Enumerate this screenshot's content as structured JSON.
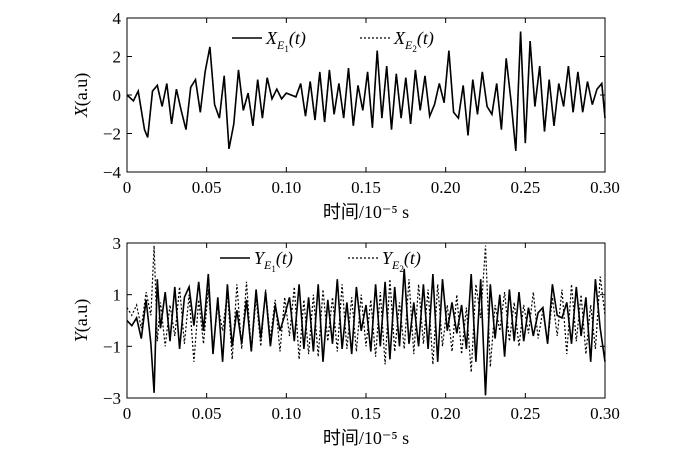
{
  "chart_data": [
    {
      "type": "line",
      "xlabel": "时间/10⁻⁵ s",
      "ylabel": "X(a.u)",
      "ylabel_italic": "X",
      "ylabel_rest": "(a.u)",
      "xlim": [
        0,
        0.3
      ],
      "ylim": [
        -4,
        4
      ],
      "xticks": [
        0,
        0.05,
        0.1,
        0.15,
        0.2,
        0.25,
        0.3
      ],
      "xtick_labels": [
        "0",
        "0.05",
        "0.10",
        "0.15",
        "0.20",
        "0.25",
        "0.30"
      ],
      "yticks": [
        -4,
        -2,
        0,
        2,
        4
      ],
      "ytick_labels": [
        "−4",
        "−2",
        "0",
        "2",
        "4"
      ],
      "grid": false,
      "legend_position": "top-center",
      "series": [
        {
          "name": "X_E1(t)",
          "legend_main": "X",
          "legend_sub": "E",
          "legend_subsub": "1",
          "legend_tail": "(t)",
          "style": "solid",
          "x": [
            0,
            0.004,
            0.007,
            0.011,
            0.013,
            0.016,
            0.019,
            0.022,
            0.025,
            0.028,
            0.031,
            0.034,
            0.037,
            0.04,
            0.043,
            0.046,
            0.049,
            0.052,
            0.055,
            0.058,
            0.061,
            0.064,
            0.067,
            0.07,
            0.073,
            0.076,
            0.079,
            0.082,
            0.085,
            0.088,
            0.091,
            0.094,
            0.097,
            0.1,
            0.103,
            0.106,
            0.109,
            0.112,
            0.115,
            0.118,
            0.121,
            0.124,
            0.127,
            0.13,
            0.133,
            0.136,
            0.139,
            0.142,
            0.145,
            0.148,
            0.151,
            0.154,
            0.157,
            0.16,
            0.163,
            0.166,
            0.169,
            0.172,
            0.175,
            0.178,
            0.181,
            0.184,
            0.187,
            0.19,
            0.193,
            0.196,
            0.199,
            0.202,
            0.205,
            0.208,
            0.211,
            0.214,
            0.217,
            0.22,
            0.223,
            0.226,
            0.229,
            0.232,
            0.235,
            0.238,
            0.241,
            0.244,
            0.247,
            0.25,
            0.253,
            0.256,
            0.259,
            0.262,
            0.265,
            0.268,
            0.271,
            0.274,
            0.277,
            0.28,
            0.283,
            0.286,
            0.289,
            0.292,
            0.295,
            0.298,
            0.3
          ],
          "values": [
            0,
            -0.3,
            0.2,
            -1.8,
            -2.2,
            0.2,
            0.5,
            -0.6,
            0.6,
            -1.5,
            0.3,
            -0.8,
            -1.8,
            0.4,
            0.8,
            -0.9,
            1.2,
            2.5,
            -0.5,
            -1.2,
            1.0,
            -2.8,
            -1.5,
            1.3,
            -0.8,
            0.1,
            -1.6,
            0.8,
            -1.2,
            0.9,
            -0.2,
            0.3,
            -0.2,
            0.1,
            0,
            -0.1,
            0.6,
            -1.1,
            0.7,
            -1.3,
            1.2,
            -1.4,
            1.3,
            -1.0,
            0.6,
            -1.2,
            1.4,
            -1.6,
            0.5,
            -0.8,
            1.2,
            -1.7,
            2.3,
            -1.2,
            1.5,
            -1.8,
            1.1,
            -1.2,
            0.9,
            -1.5,
            1.3,
            -0.8,
            1.0,
            -1.1,
            -0.5,
            0.6,
            -0.4,
            2.3,
            -0.9,
            -1.2,
            0.5,
            -2.1,
            0.8,
            -1.0,
            1.2,
            -0.6,
            -1.0,
            0.6,
            -1.8,
            1.9,
            -0.3,
            -2.9,
            3.3,
            -2.5,
            2.8,
            -0.6,
            1.5,
            -1.9,
            0.8,
            -1.6,
            0.6,
            -0.6,
            1.5,
            -0.9,
            1.2,
            -0.9,
            0.7,
            -0.5,
            0.3,
            0.6,
            -1.2
          ]
        },
        {
          "name": "X_E2(t)",
          "legend_main": "X",
          "legend_sub": "E",
          "legend_subsub": "2",
          "legend_tail": "(t)",
          "style": "dotted",
          "x": [
            0,
            0.004,
            0.007,
            0.011,
            0.013,
            0.016,
            0.019,
            0.022,
            0.025,
            0.028,
            0.031,
            0.034,
            0.037,
            0.04,
            0.043,
            0.046,
            0.049,
            0.052,
            0.055,
            0.058,
            0.061,
            0.064,
            0.067,
            0.07,
            0.073,
            0.076,
            0.079,
            0.082,
            0.085,
            0.088,
            0.091,
            0.094,
            0.097,
            0.1,
            0.103,
            0.106,
            0.109,
            0.112,
            0.115,
            0.118,
            0.121,
            0.124,
            0.127,
            0.13,
            0.133,
            0.136,
            0.139,
            0.142,
            0.145,
            0.148,
            0.151,
            0.154,
            0.157,
            0.16,
            0.163,
            0.166,
            0.169,
            0.172,
            0.175,
            0.178,
            0.181,
            0.184,
            0.187,
            0.19,
            0.193,
            0.196,
            0.199,
            0.202,
            0.205,
            0.208,
            0.211,
            0.214,
            0.217,
            0.22,
            0.223,
            0.226,
            0.229,
            0.232,
            0.235,
            0.238,
            0.241,
            0.244,
            0.247,
            0.25,
            0.253,
            0.256,
            0.259,
            0.262,
            0.265,
            0.268,
            0.271,
            0.274,
            0.277,
            0.28,
            0.283,
            0.286,
            0.289,
            0.292,
            0.295,
            0.298,
            0.3
          ],
          "values": [
            0,
            -0.3,
            0.2,
            -1.8,
            -2.2,
            0.2,
            0.5,
            -0.6,
            0.6,
            -1.5,
            0.3,
            -0.8,
            -1.8,
            0.4,
            0.8,
            -0.9,
            1.2,
            2.5,
            -0.5,
            -1.2,
            1.0,
            -2.8,
            -1.5,
            1.3,
            -0.8,
            0.1,
            -1.6,
            0.8,
            -1.2,
            0.9,
            -0.2,
            0.3,
            -0.2,
            0.1,
            0,
            -0.1,
            0.6,
            -1.1,
            0.7,
            -1.3,
            1.2,
            -1.4,
            1.3,
            -1.0,
            0.6,
            -1.2,
            1.4,
            -1.6,
            0.5,
            -0.8,
            1.2,
            -1.7,
            2.3,
            -1.2,
            1.5,
            -1.8,
            1.1,
            -1.2,
            0.9,
            -1.5,
            1.3,
            -0.8,
            1.0,
            -1.1,
            -0.5,
            0.6,
            -0.4,
            2.3,
            -0.9,
            -1.2,
            0.5,
            -2.1,
            0.8,
            -1.0,
            1.2,
            -0.6,
            -1.0,
            0.6,
            -1.8,
            1.9,
            -0.3,
            -2.9,
            3.3,
            -2.5,
            2.8,
            -0.6,
            1.5,
            -1.9,
            0.8,
            -1.6,
            0.6,
            -0.6,
            1.5,
            -0.9,
            1.2,
            -0.9,
            0.7,
            -0.5,
            0.3,
            0.6,
            -1.2
          ]
        }
      ]
    },
    {
      "type": "line",
      "xlabel": "时间/10⁻⁵ s",
      "ylabel": "Y(a.u)",
      "ylabel_italic": "Y",
      "ylabel_rest": "(a.u)",
      "xlim": [
        0,
        0.3
      ],
      "ylim": [
        -3,
        3
      ],
      "xticks": [
        0,
        0.05,
        0.1,
        0.15,
        0.2,
        0.25,
        0.3
      ],
      "xtick_labels": [
        "0",
        "0.05",
        "0.10",
        "0.15",
        "0.20",
        "0.25",
        "0.30"
      ],
      "yticks": [
        -3,
        -1,
        1,
        3
      ],
      "ytick_labels": [
        "−3",
        "−1",
        "1",
        "3"
      ],
      "grid": false,
      "legend_position": "top-center",
      "series": [
        {
          "name": "Y_E1(t)",
          "legend_main": "Y",
          "legend_sub": "E",
          "legend_subsub": "1",
          "legend_tail": "(t)",
          "style": "solid",
          "x": [
            0,
            0.003,
            0.006,
            0.009,
            0.012,
            0.015,
            0.017,
            0.019,
            0.021,
            0.024,
            0.027,
            0.03,
            0.033,
            0.036,
            0.039,
            0.042,
            0.045,
            0.048,
            0.051,
            0.054,
            0.057,
            0.06,
            0.063,
            0.066,
            0.069,
            0.072,
            0.075,
            0.078,
            0.081,
            0.084,
            0.087,
            0.09,
            0.093,
            0.096,
            0.099,
            0.102,
            0.105,
            0.108,
            0.111,
            0.114,
            0.117,
            0.12,
            0.123,
            0.126,
            0.129,
            0.132,
            0.135,
            0.138,
            0.141,
            0.144,
            0.147,
            0.15,
            0.153,
            0.156,
            0.159,
            0.162,
            0.165,
            0.168,
            0.171,
            0.174,
            0.177,
            0.18,
            0.183,
            0.186,
            0.189,
            0.192,
            0.195,
            0.198,
            0.201,
            0.204,
            0.207,
            0.21,
            0.213,
            0.216,
            0.219,
            0.222,
            0.225,
            0.228,
            0.231,
            0.234,
            0.237,
            0.24,
            0.243,
            0.246,
            0.249,
            0.252,
            0.255,
            0.258,
            0.261,
            0.264,
            0.267,
            0.27,
            0.273,
            0.276,
            0.279,
            0.282,
            0.285,
            0.288,
            0.291,
            0.294,
            0.297,
            0.3
          ],
          "values": [
            0,
            -0.2,
            0.1,
            -0.7,
            0.8,
            -0.9,
            -2.8,
            1.6,
            -0.3,
            1.1,
            -0.8,
            1.3,
            -1.1,
            0.9,
            1.3,
            -0.2,
            1.5,
            -0.4,
            1.8,
            -1.3,
            0.9,
            -1.6,
            1.4,
            -1.0,
            0.4,
            -0.9,
            0.8,
            -1.2,
            1.2,
            -0.7,
            1.1,
            -1.0,
            0.6,
            -0.4,
            0.2,
            0.9,
            -0.8,
            1.4,
            -1.1,
            0.9,
            -1.2,
            1.4,
            -1.6,
            0.8,
            -0.9,
            1.6,
            -1.1,
            0.7,
            -1.3,
            1.3,
            -0.4,
            0.6,
            -1.2,
            1.4,
            -1.0,
            1.5,
            -1.5,
            1.3,
            -1.0,
            2.0,
            -0.9,
            0.7,
            -1.0,
            1.4,
            -1.1,
            1.8,
            -1.6,
            1.6,
            -0.4,
            0.7,
            -0.5,
            0.6,
            -1.1,
            1.8,
            -1.6,
            1.6,
            -2.9,
            1.4,
            -0.7,
            1.0,
            -1.4,
            1.2,
            -0.8,
            1.1,
            -0.8,
            0.5,
            -0.6,
            0.3,
            0.5,
            -0.9,
            1.4,
            0.2,
            0.1,
            0.7,
            -0.9,
            1.3,
            -0.6,
            0.9,
            -1.6,
            1.6,
            -0.3,
            -1.6
          ]
        },
        {
          "name": "Y_E2(t)",
          "legend_main": "Y",
          "legend_sub": "E",
          "legend_subsub": "2",
          "legend_tail": "(t)",
          "style": "dotted",
          "x": [
            0,
            0.003,
            0.006,
            0.009,
            0.012,
            0.015,
            0.017,
            0.019,
            0.021,
            0.024,
            0.027,
            0.03,
            0.033,
            0.036,
            0.039,
            0.042,
            0.045,
            0.048,
            0.051,
            0.054,
            0.057,
            0.06,
            0.063,
            0.066,
            0.069,
            0.072,
            0.075,
            0.078,
            0.081,
            0.084,
            0.087,
            0.09,
            0.093,
            0.096,
            0.099,
            0.102,
            0.105,
            0.108,
            0.111,
            0.114,
            0.117,
            0.12,
            0.123,
            0.126,
            0.129,
            0.132,
            0.135,
            0.138,
            0.141,
            0.144,
            0.147,
            0.15,
            0.153,
            0.156,
            0.159,
            0.162,
            0.165,
            0.168,
            0.171,
            0.174,
            0.177,
            0.18,
            0.183,
            0.186,
            0.189,
            0.192,
            0.195,
            0.198,
            0.201,
            0.204,
            0.207,
            0.21,
            0.213,
            0.216,
            0.219,
            0.222,
            0.225,
            0.228,
            0.231,
            0.234,
            0.237,
            0.24,
            0.243,
            0.246,
            0.249,
            0.252,
            0.255,
            0.258,
            0.261,
            0.264,
            0.267,
            0.27,
            0.273,
            0.276,
            0.279,
            0.282,
            0.285,
            0.288,
            0.291,
            0.294,
            0.297,
            0.3
          ],
          "values": [
            0.5,
            0.2,
            0.6,
            -0.3,
            1.1,
            0.2,
            2.9,
            -0.8,
            0.7,
            -1.0,
            0.6,
            -0.6,
            1.3,
            -0.9,
            1.0,
            -1.6,
            0.8,
            -0.9,
            1.2,
            -1.1,
            0.6,
            -0.4,
            1.1,
            -1.5,
            1.4,
            -1.1,
            1.5,
            -1.2,
            0.9,
            -1.0,
            1.2,
            -0.7,
            0.8,
            -1.2,
            0.9,
            -0.6,
            1.3,
            -1.5,
            0.8,
            -1.3,
            1.0,
            -1.4,
            1.2,
            -0.8,
            0.9,
            -1.2,
            1.4,
            -1.1,
            0.9,
            -1.2,
            1.0,
            -1.0,
            0.8,
            -1.4,
            1.1,
            -1.7,
            1.6,
            -1.2,
            0.7,
            -1.1,
            1.6,
            -1.3,
            1.4,
            -0.9,
            1.2,
            -1.7,
            1.4,
            -1.0,
            0.6,
            -1.2,
            1.0,
            -1.3,
            0.5,
            -2.0,
            1.4,
            0.1,
            2.9,
            -1.8,
            0.6,
            -0.4,
            1.1,
            -0.8,
            0.7,
            -1.0,
            0.6,
            -0.5,
            1.1,
            -0.7,
            0.4,
            -0.9,
            0.9,
            -0.6,
            1.2,
            -1.3,
            1.4,
            -0.8,
            1.0,
            -1.3,
            0.6,
            -1.1,
            1.7,
            0.2
          ]
        }
      ]
    }
  ]
}
